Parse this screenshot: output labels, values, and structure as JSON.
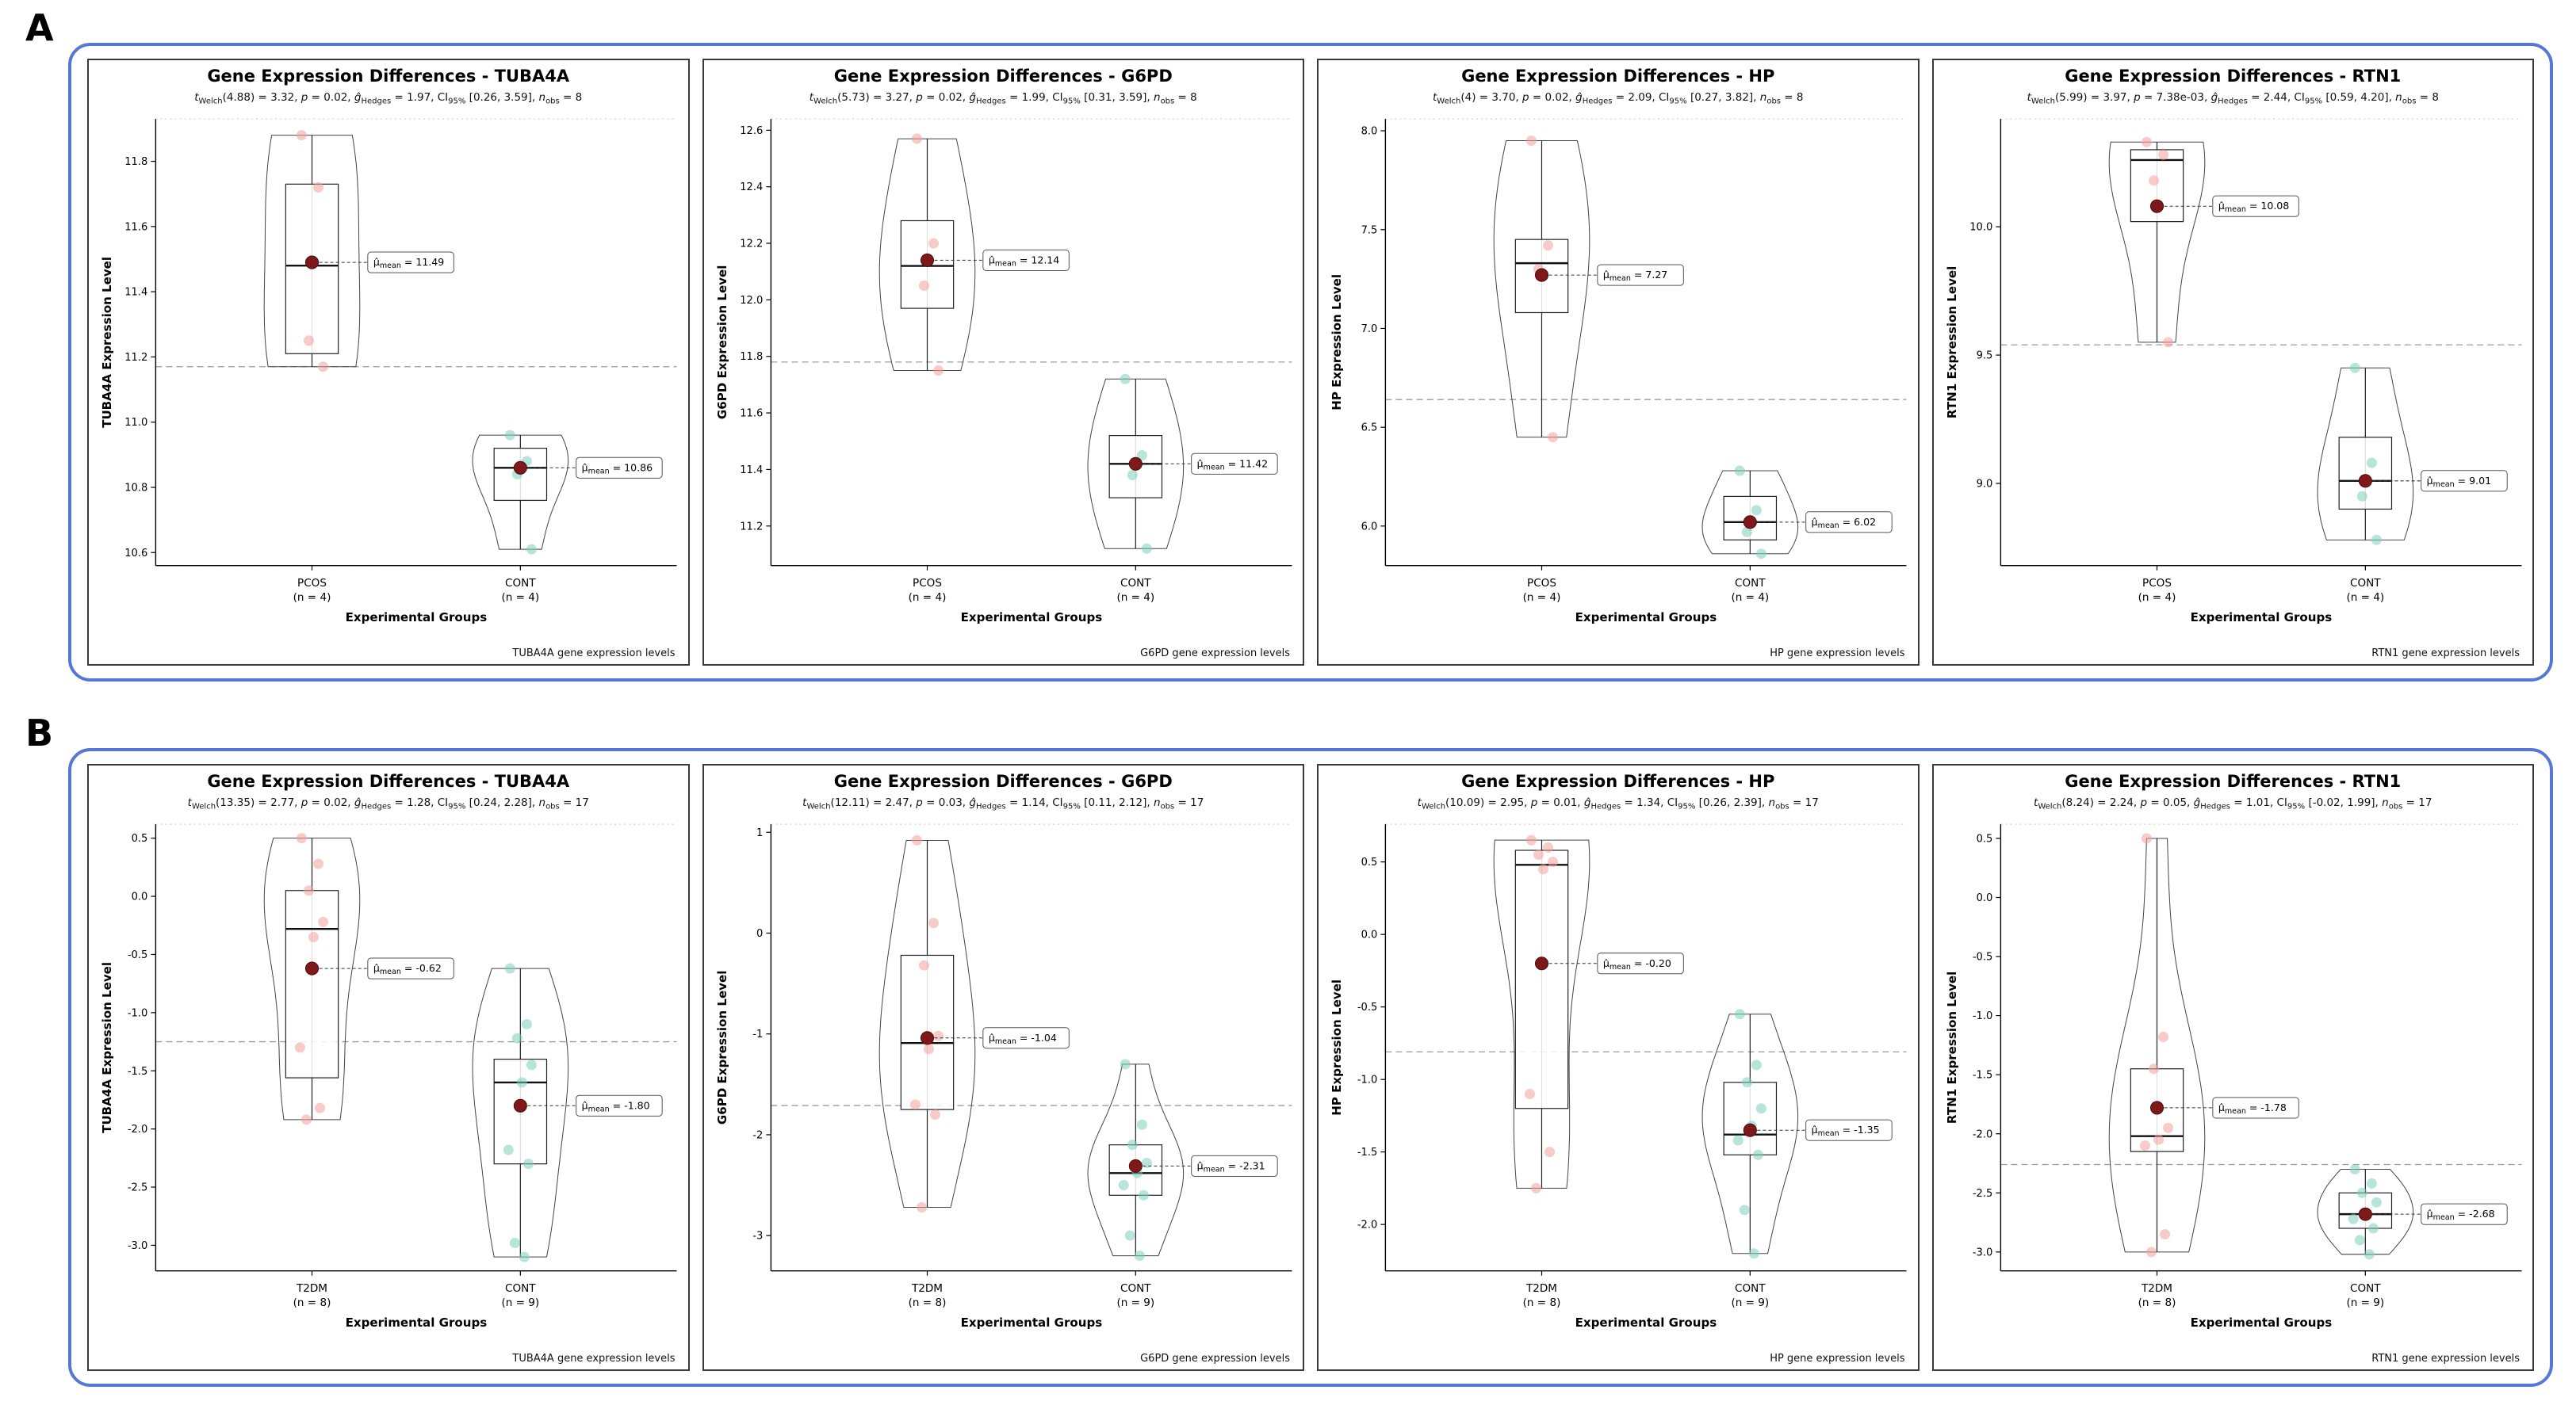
{
  "figure": {
    "panel_labels": [
      "A",
      "B"
    ],
    "colors": {
      "panel_border": "#5577d6",
      "group1_point": "#f2a09b",
      "group2_point": "#7ecfbd",
      "mean_dot": "#7f1818",
      "grand_mean_line": "#9b9b9b"
    }
  },
  "chart_data": [
    {
      "panel": "A",
      "type": "violin-box",
      "title": "Gene Expression Differences - TUBA4A",
      "stats": {
        "df": "4.88",
        "t": "3.32",
        "p": "0.02",
        "g_hedges": "1.97",
        "ci95": "[0.26, 3.59]",
        "n_obs": "8"
      },
      "ylabel": "TUBA4A Expression Level",
      "xlabel": "Experimental Groups",
      "caption": "TUBA4A gene expression levels",
      "ylim": [
        10.56,
        11.93
      ],
      "ytick_vals": [
        10.6,
        10.8,
        11.0,
        11.2,
        11.4,
        11.6,
        11.8
      ],
      "ytick_labels": [
        "10.6",
        "10.8",
        "11.0",
        "11.2",
        "11.4",
        "11.6",
        "11.8"
      ],
      "grand_mean": 11.17,
      "groups": [
        {
          "label": "PCOS",
          "n_label": "(n = 4)",
          "mean": 11.49,
          "mean_label": "11.49",
          "box": {
            "min": 11.17,
            "q1": 11.21,
            "median": 11.48,
            "q3": 11.73,
            "max": 11.88
          },
          "points": [
            11.88,
            11.72,
            11.25,
            11.17
          ]
        },
        {
          "label": "CONT",
          "n_label": "(n = 4)",
          "mean": 10.86,
          "mean_label": "10.86",
          "box": {
            "min": 10.61,
            "q1": 10.76,
            "median": 10.86,
            "q3": 10.92,
            "max": 10.96
          },
          "points": [
            10.96,
            10.88,
            10.84,
            10.61
          ]
        }
      ]
    },
    {
      "panel": "A",
      "type": "violin-box",
      "title": "Gene Expression Differences - G6PD",
      "stats": {
        "df": "5.73",
        "t": "3.27",
        "p": "0.02",
        "g_hedges": "1.99",
        "ci95": "[0.31, 3.59]",
        "n_obs": "8"
      },
      "ylabel": "G6PD Expression Level",
      "xlabel": "Experimental Groups",
      "caption": "G6PD gene expression levels",
      "ylim": [
        11.06,
        12.64
      ],
      "ytick_vals": [
        11.2,
        11.4,
        11.6,
        11.8,
        12.0,
        12.2,
        12.4,
        12.6
      ],
      "ytick_labels": [
        "11.2",
        "11.4",
        "11.6",
        "11.8",
        "12.0",
        "12.2",
        "12.4",
        "12.6"
      ],
      "grand_mean": 11.78,
      "groups": [
        {
          "label": "PCOS",
          "n_label": "(n = 4)",
          "mean": 12.14,
          "mean_label": "12.14",
          "box": {
            "min": 11.75,
            "q1": 11.97,
            "median": 12.12,
            "q3": 12.28,
            "max": 12.57
          },
          "points": [
            12.57,
            12.2,
            12.05,
            11.75
          ]
        },
        {
          "label": "CONT",
          "n_label": "(n = 4)",
          "mean": 11.42,
          "mean_label": "11.42",
          "box": {
            "min": 11.12,
            "q1": 11.3,
            "median": 11.42,
            "q3": 11.52,
            "max": 11.72
          },
          "points": [
            11.72,
            11.45,
            11.38,
            11.12
          ]
        }
      ]
    },
    {
      "panel": "A",
      "type": "violin-box",
      "title": "Gene Expression Differences - HP",
      "stats": {
        "df": "4",
        "t": "3.70",
        "p": "0.02",
        "g_hedges": "2.09",
        "ci95": "[0.27, 3.82]",
        "n_obs": "8"
      },
      "ylabel": "HP Expression Level",
      "xlabel": "Experimental Groups",
      "caption": "HP gene expression levels",
      "ylim": [
        5.8,
        8.06
      ],
      "ytick_vals": [
        6.0,
        6.5,
        7.0,
        7.5,
        8.0
      ],
      "ytick_labels": [
        "6.0",
        "6.5",
        "7.0",
        "7.5",
        "8.0"
      ],
      "grand_mean": 6.64,
      "groups": [
        {
          "label": "PCOS",
          "n_label": "(n = 4)",
          "mean": 7.27,
          "mean_label": "7.27",
          "box": {
            "min": 6.45,
            "q1": 7.08,
            "median": 7.33,
            "q3": 7.45,
            "max": 7.95
          },
          "points": [
            7.95,
            7.42,
            7.3,
            6.45
          ]
        },
        {
          "label": "CONT",
          "n_label": "(n = 4)",
          "mean": 6.02,
          "mean_label": "6.02",
          "box": {
            "min": 5.86,
            "q1": 5.93,
            "median": 6.02,
            "q3": 6.15,
            "max": 6.28
          },
          "points": [
            6.28,
            6.08,
            5.97,
            5.86
          ]
        }
      ]
    },
    {
      "panel": "A",
      "type": "violin-box",
      "title": "Gene Expression Differences - RTN1",
      "stats": {
        "df": "5.99",
        "t": "3.97",
        "p": "7.38e-03",
        "g_hedges": "2.44",
        "ci95": "[0.59, 4.20]",
        "n_obs": "8"
      },
      "ylabel": "RTN1 Expression Level",
      "xlabel": "Experimental Groups",
      "caption": "RTN1 gene expression levels",
      "ylim": [
        8.68,
        10.42
      ],
      "ytick_vals": [
        9.0,
        9.5,
        10.0
      ],
      "ytick_labels": [
        "9.0",
        "9.5",
        "10.0"
      ],
      "grand_mean": 9.54,
      "groups": [
        {
          "label": "PCOS",
          "n_label": "(n = 4)",
          "mean": 10.08,
          "mean_label": "10.08",
          "box": {
            "min": 9.55,
            "q1": 10.02,
            "median": 10.26,
            "q3": 10.3,
            "max": 10.33
          },
          "points": [
            10.33,
            10.28,
            10.18,
            9.55
          ]
        },
        {
          "label": "CONT",
          "n_label": "(n = 4)",
          "mean": 9.01,
          "mean_label": "9.01",
          "box": {
            "min": 8.78,
            "q1": 8.9,
            "median": 9.01,
            "q3": 9.18,
            "max": 9.45
          },
          "points": [
            9.45,
            9.08,
            8.95,
            8.78
          ]
        }
      ]
    },
    {
      "panel": "B",
      "type": "violin-box",
      "title": "Gene Expression Differences - TUBA4A",
      "stats": {
        "df": "13.35",
        "t": "2.77",
        "p": "0.02",
        "g_hedges": "1.28",
        "ci95": "[0.24, 2.28]",
        "n_obs": "17"
      },
      "ylabel": "TUBA4A Expression Level",
      "xlabel": "Experimental Groups",
      "caption": "TUBA4A gene expression levels",
      "ylim": [
        -3.22,
        0.62
      ],
      "ytick_vals": [
        0.5,
        0.0,
        -0.5,
        -1.0,
        -1.5,
        -2.0,
        -2.5,
        -3.0
      ],
      "ytick_labels": [
        "0.5",
        "0.0",
        "-0.5",
        "-1.0",
        "-1.5",
        "-2.0",
        "-2.5",
        "-3.0"
      ],
      "grand_mean": -1.25,
      "groups": [
        {
          "label": "T2DM",
          "n_label": "(n = 8)",
          "mean": -0.62,
          "mean_label": "-0.62",
          "box": {
            "min": -1.92,
            "q1": -1.56,
            "median": -0.28,
            "q3": 0.05,
            "max": 0.5
          },
          "points": [
            0.5,
            0.28,
            0.05,
            -0.22,
            -0.35,
            -1.3,
            -1.82,
            -1.92
          ]
        },
        {
          "label": "CONT",
          "n_label": "(n = 9)",
          "mean": -1.8,
          "mean_label": "-1.80",
          "box": {
            "min": -3.1,
            "q1": -2.3,
            "median": -1.6,
            "q3": -1.4,
            "max": -0.62
          },
          "points": [
            -0.62,
            -1.1,
            -1.22,
            -1.45,
            -1.6,
            -2.18,
            -2.3,
            -2.98,
            -3.1
          ]
        }
      ]
    },
    {
      "panel": "B",
      "type": "violin-box",
      "title": "Gene Expression Differences - G6PD",
      "stats": {
        "df": "12.11",
        "t": "2.47",
        "p": "0.03",
        "g_hedges": "1.14",
        "ci95": "[0.11, 2.12]",
        "n_obs": "17"
      },
      "ylabel": "G6PD Expression Level",
      "xlabel": "Experimental Groups",
      "caption": "G6PD gene expression levels",
      "ylim": [
        -3.35,
        1.08
      ],
      "ytick_vals": [
        1,
        0,
        -1,
        -2,
        -3
      ],
      "ytick_labels": [
        "1",
        "0",
        "-1",
        "-2",
        "-3"
      ],
      "grand_mean": -1.71,
      "groups": [
        {
          "label": "T2DM",
          "n_label": "(n = 8)",
          "mean": -1.04,
          "mean_label": "-1.04",
          "box": {
            "min": -2.72,
            "q1": -1.75,
            "median": -1.09,
            "q3": -0.22,
            "max": 0.92
          },
          "points": [
            0.92,
            0.1,
            -0.32,
            -1.02,
            -1.15,
            -1.7,
            -1.8,
            -2.72
          ]
        },
        {
          "label": "CONT",
          "n_label": "(n = 9)",
          "mean": -2.31,
          "mean_label": "-2.31",
          "box": {
            "min": -3.2,
            "q1": -2.6,
            "median": -2.38,
            "q3": -2.1,
            "max": -1.3
          },
          "points": [
            -1.3,
            -1.9,
            -2.1,
            -2.28,
            -2.38,
            -2.5,
            -2.6,
            -3.0,
            -3.2
          ]
        }
      ]
    },
    {
      "panel": "B",
      "type": "violin-box",
      "title": "Gene Expression Differences - HP",
      "stats": {
        "df": "10.09",
        "t": "2.95",
        "p": "0.01",
        "g_hedges": "1.34",
        "ci95": "[0.26, 2.39]",
        "n_obs": "17"
      },
      "ylabel": "HP Expression Level",
      "xlabel": "Experimental Groups",
      "caption": "HP gene expression levels",
      "ylim": [
        -2.32,
        0.76
      ],
      "ytick_vals": [
        0.5,
        0.0,
        -0.5,
        -1.0,
        -1.5,
        -2.0
      ],
      "ytick_labels": [
        "0.5",
        "0.0",
        "-0.5",
        "-1.0",
        "-1.5",
        "-2.0"
      ],
      "grand_mean": -0.81,
      "groups": [
        {
          "label": "T2DM",
          "n_label": "(n = 8)",
          "mean": -0.2,
          "mean_label": "-0.20",
          "box": {
            "min": -1.75,
            "q1": -1.2,
            "median": 0.48,
            "q3": 0.58,
            "max": 0.65
          },
          "points": [
            0.65,
            0.6,
            0.55,
            0.5,
            0.45,
            -1.1,
            -1.5,
            -1.75
          ]
        },
        {
          "label": "CONT",
          "n_label": "(n = 9)",
          "mean": -1.35,
          "mean_label": "-1.35",
          "box": {
            "min": -2.2,
            "q1": -1.52,
            "median": -1.38,
            "q3": -1.02,
            "max": -0.55
          },
          "points": [
            -0.55,
            -0.9,
            -1.02,
            -1.2,
            -1.32,
            -1.42,
            -1.52,
            -1.9,
            -2.2
          ]
        }
      ]
    },
    {
      "panel": "B",
      "type": "violin-box",
      "title": "Gene Expression Differences - RTN1",
      "stats": {
        "df": "8.24",
        "t": "2.24",
        "p": "0.05",
        "g_hedges": "1.01",
        "ci95": "[-0.02, 1.99]",
        "n_obs": "17"
      },
      "ylabel": "RTN1 Expression Level",
      "xlabel": "Experimental Groups",
      "caption": "RTN1 gene expression levels",
      "ylim": [
        -3.16,
        0.62
      ],
      "ytick_vals": [
        0.5,
        0.0,
        -0.5,
        -1.0,
        -1.5,
        -2.0,
        -2.5,
        -3.0
      ],
      "ytick_labels": [
        "0.5",
        "0.0",
        "-0.5",
        "-1.0",
        "-1.5",
        "-2.0",
        "-2.5",
        "-3.0"
      ],
      "grand_mean": -2.26,
      "groups": [
        {
          "label": "T2DM",
          "n_label": "(n = 8)",
          "mean": -1.78,
          "mean_label": "-1.78",
          "box": {
            "min": -3.0,
            "q1": -2.15,
            "median": -2.02,
            "q3": -1.45,
            "max": 0.5
          },
          "points": [
            0.5,
            -1.18,
            -1.45,
            -1.95,
            -2.05,
            -2.1,
            -2.85,
            -3.0
          ]
        },
        {
          "label": "CONT",
          "n_label": "(n = 9)",
          "mean": -2.68,
          "mean_label": "-2.68",
          "box": {
            "min": -3.02,
            "q1": -2.8,
            "median": -2.68,
            "q3": -2.5,
            "max": -2.3
          },
          "points": [
            -2.3,
            -2.42,
            -2.5,
            -2.58,
            -2.68,
            -2.72,
            -2.8,
            -2.9,
            -3.02
          ]
        }
      ]
    }
  ]
}
